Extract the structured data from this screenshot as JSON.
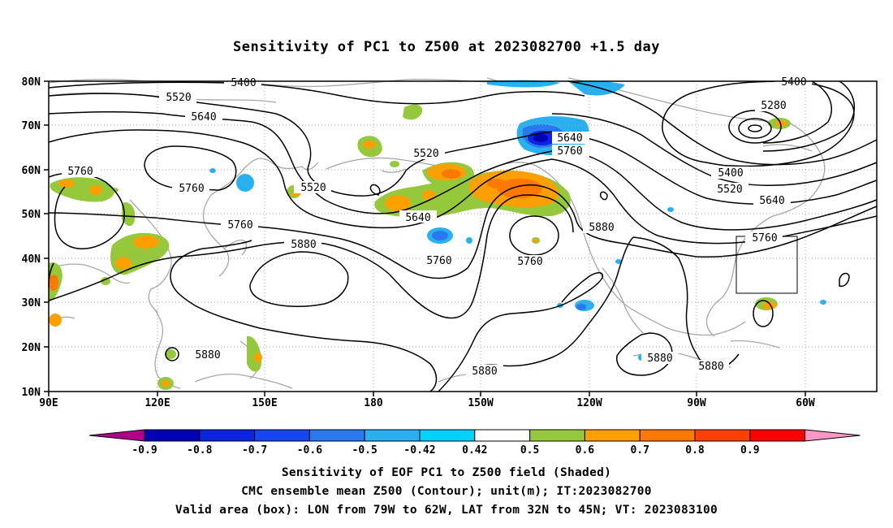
{
  "title": "Sensitivity of PC1 to Z500 at 2023082700 +1.5 day",
  "map": {
    "lon_ticks": [
      "90E",
      "120E",
      "150E",
      "180",
      "150W",
      "120W",
      "90W",
      "60W"
    ],
    "lat_ticks": [
      "80N",
      "70N",
      "60N",
      "50N",
      "40N",
      "30N",
      "20N",
      "10N"
    ],
    "contour_labels": [
      "5400",
      "5400",
      "5520",
      "5640",
      "5760",
      "5760",
      "5520",
      "5520",
      "5640",
      "5760",
      "5880",
      "5640",
      "5760",
      "5760",
      "5760",
      "5880",
      "5280",
      "5400",
      "5520",
      "5640",
      "5760",
      "5880",
      "5880",
      "5880",
      "5880"
    ],
    "valid_box": {
      "lon_min": -79,
      "lon_max": -62,
      "lat_min": 32,
      "lat_max": 45
    }
  },
  "colorbar": {
    "labels": [
      "-0.9",
      "-0.8",
      "-0.7",
      "-0.6",
      "-0.5",
      "-0.42",
      "0.42",
      "0.5",
      "0.6",
      "0.7",
      "0.8",
      "0.9"
    ],
    "colors": [
      "#b0008a",
      "#0000b4",
      "#0a24e0",
      "#1846f0",
      "#2a78f0",
      "#2ab0f0",
      "#00d2ff",
      "#ffffff",
      "#96c83c",
      "#ffa000",
      "#ff7800",
      "#ff4000",
      "#ff0000",
      "#ff96c8"
    ]
  },
  "captions": {
    "line1": "Sensitivity of EOF PC1 to Z500 field (Shaded)",
    "line2": "CMC ensemble mean Z500 (Contour); unit(m); IT:2023082700",
    "line3": "Valid area (box): LON from 79W to 62W, LAT from 32N to 45N; VT: 2023083100"
  }
}
